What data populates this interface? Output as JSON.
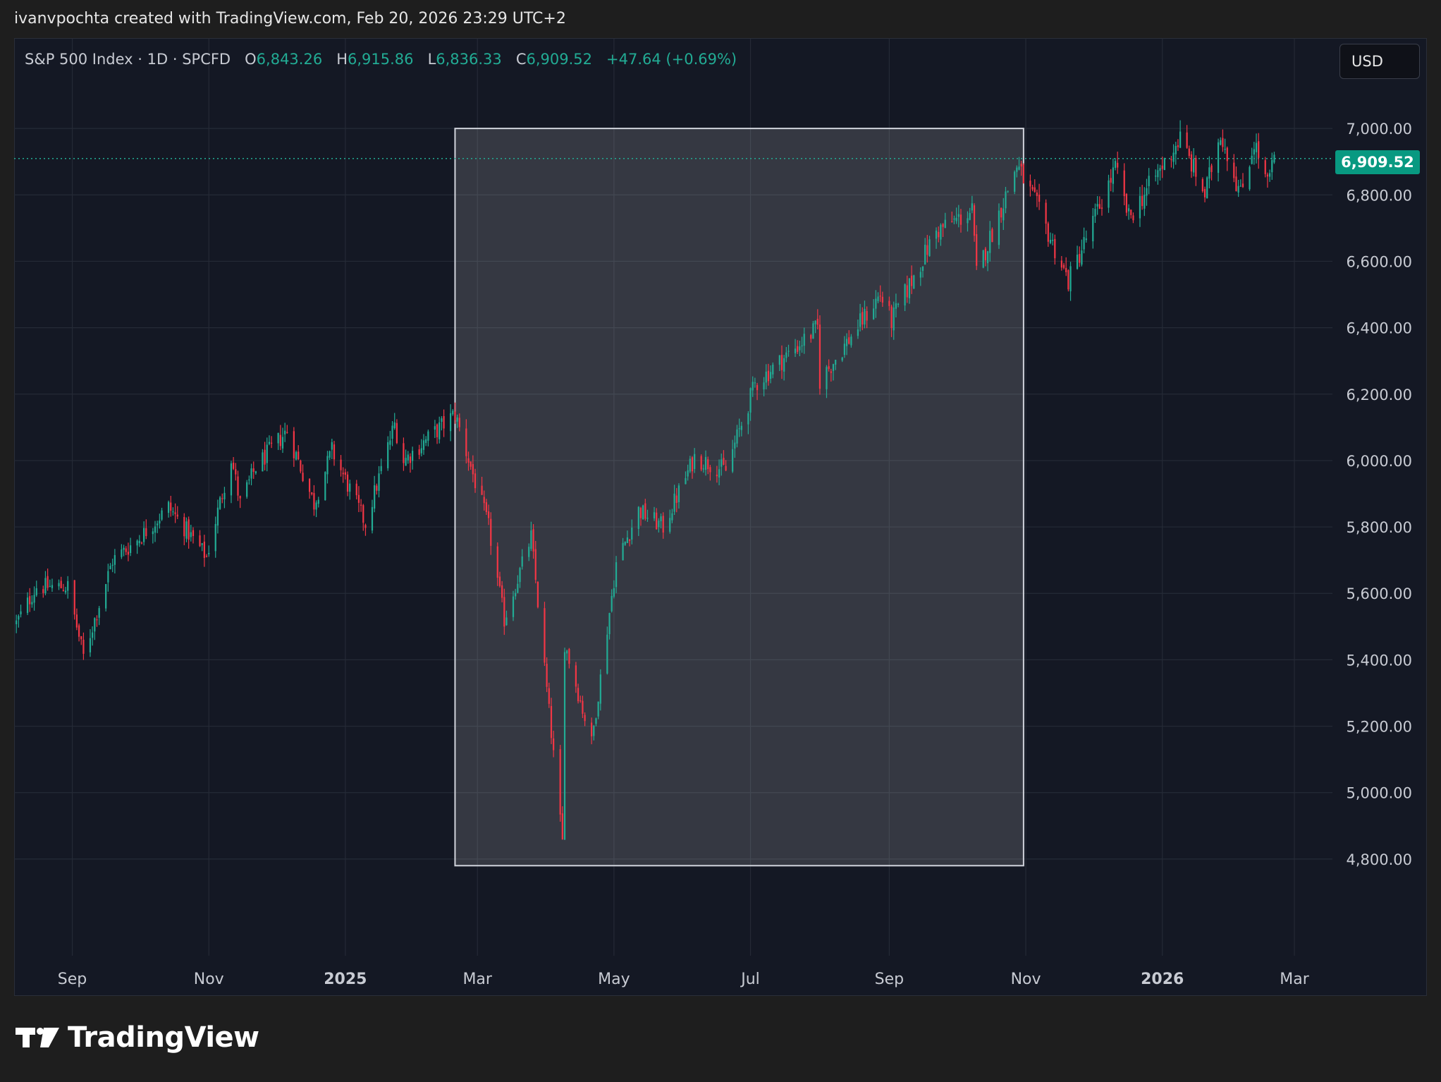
{
  "header": {
    "attribution": "ivanvpochta created with TradingView.com, Feb 20, 2026 23:29 UTC+2"
  },
  "legend": {
    "symbol": "S&P 500 Index · 1D · SPCFD",
    "o_label": "O",
    "open": "6,843.26",
    "h_label": "H",
    "high": "6,915.86",
    "l_label": "L",
    "low": "6,836.33",
    "c_label": "C",
    "close": "6,909.52",
    "change": "+47.64 (+0.69%)"
  },
  "currency_button": {
    "label": "USD"
  },
  "last_price": {
    "label": "6,909.52",
    "value": 6909.52
  },
  "brand": {
    "name": "TradingView",
    "logo_text": "TV"
  },
  "colors": {
    "up": "#22ab94",
    "down": "#f23645",
    "background": "#141824",
    "grid": "#252a36",
    "highlight_fill": "#ffffff",
    "highlight_stroke": "#d1d4dc",
    "text": "#c8cbd3"
  },
  "chart_data": {
    "type": "candlestick",
    "title": "S&P 500 Index · 1D · SPCFD",
    "x_ticks": [
      {
        "label": "Sep",
        "date": "2024-09-01",
        "bold": false
      },
      {
        "label": "Nov",
        "date": "2024-11-01",
        "bold": false
      },
      {
        "label": "2025",
        "date": "2025-01-01",
        "bold": true
      },
      {
        "label": "Mar",
        "date": "2025-03-01",
        "bold": false
      },
      {
        "label": "May",
        "date": "2025-05-01",
        "bold": false
      },
      {
        "label": "Jul",
        "date": "2025-07-01",
        "bold": false
      },
      {
        "label": "Sep",
        "date": "2025-09-01",
        "bold": false
      },
      {
        "label": "Nov",
        "date": "2025-11-01",
        "bold": false
      },
      {
        "label": "2026",
        "date": "2026-01-01",
        "bold": true
      },
      {
        "label": "Mar",
        "date": "2026-03-01",
        "bold": false
      }
    ],
    "y_ticks": [
      "7,000.00",
      "6,800.00",
      "6,600.00",
      "6,400.00",
      "6,200.00",
      "6,000.00",
      "5,800.00",
      "5,600.00",
      "5,400.00",
      "5,200.00",
      "5,000.00",
      "4,800.00"
    ],
    "ylim": [
      4530,
      7270
    ],
    "xlim": [
      "2024-08-06",
      "2026-03-18"
    ],
    "highlight_box": {
      "start": "2025-02-19",
      "end": "2025-10-31",
      "high": 7000,
      "low": 4780
    },
    "path": [
      {
        "date": "2024-08-07",
        "close": 5510
      },
      {
        "date": "2024-08-16",
        "close": 5620
      },
      {
        "date": "2024-08-30",
        "close": 5620
      },
      {
        "date": "2024-09-06",
        "close": 5410
      },
      {
        "date": "2024-09-19",
        "close": 5700
      },
      {
        "date": "2024-09-30",
        "close": 5760
      },
      {
        "date": "2024-10-14",
        "close": 5860
      },
      {
        "date": "2024-10-31",
        "close": 5710
      },
      {
        "date": "2024-11-11",
        "close": 6010
      },
      {
        "date": "2024-11-15",
        "close": 5870
      },
      {
        "date": "2024-11-22",
        "close": 5980
      },
      {
        "date": "2024-12-06",
        "close": 6090
      },
      {
        "date": "2024-12-18",
        "close": 5870
      },
      {
        "date": "2024-12-26",
        "close": 6030
      },
      {
        "date": "2025-01-10",
        "close": 5810
      },
      {
        "date": "2025-01-23",
        "close": 6110
      },
      {
        "date": "2025-01-27",
        "close": 6000
      },
      {
        "date": "2025-02-19",
        "close": 6140
      },
      {
        "date": "2025-03-06",
        "close": 5800
      },
      {
        "date": "2025-03-13",
        "close": 5520
      },
      {
        "date": "2025-03-25",
        "close": 5770
      },
      {
        "date": "2025-04-08",
        "close": 4850
      },
      {
        "date": "2025-04-09",
        "close": 5450
      },
      {
        "date": "2025-04-21",
        "close": 5150
      },
      {
        "date": "2025-05-02",
        "close": 5690
      },
      {
        "date": "2025-05-12",
        "close": 5850
      },
      {
        "date": "2025-05-23",
        "close": 5800
      },
      {
        "date": "2025-06-06",
        "close": 6010
      },
      {
        "date": "2025-06-20",
        "close": 5970
      },
      {
        "date": "2025-07-03",
        "close": 6230
      },
      {
        "date": "2025-07-31",
        "close": 6400
      },
      {
        "date": "2025-08-01",
        "close": 6240
      },
      {
        "date": "2025-08-28",
        "close": 6500
      },
      {
        "date": "2025-09-02",
        "close": 6420
      },
      {
        "date": "2025-09-22",
        "close": 6690
      },
      {
        "date": "2025-10-08",
        "close": 6750
      },
      {
        "date": "2025-10-10",
        "close": 6560
      },
      {
        "date": "2025-10-28",
        "close": 6890
      },
      {
        "date": "2025-11-05",
        "close": 6780
      },
      {
        "date": "2025-11-20",
        "close": 6540
      },
      {
        "date": "2025-12-11",
        "close": 6880
      },
      {
        "date": "2025-12-17",
        "close": 6730
      },
      {
        "date": "2026-01-09",
        "close": 6970
      },
      {
        "date": "2026-01-20",
        "close": 6800
      },
      {
        "date": "2026-01-27",
        "close": 6990
      },
      {
        "date": "2026-02-05",
        "close": 6800
      },
      {
        "date": "2026-02-11",
        "close": 6960
      },
      {
        "date": "2026-02-17",
        "close": 6830
      },
      {
        "date": "2026-02-20",
        "close": 6909.52
      }
    ]
  }
}
